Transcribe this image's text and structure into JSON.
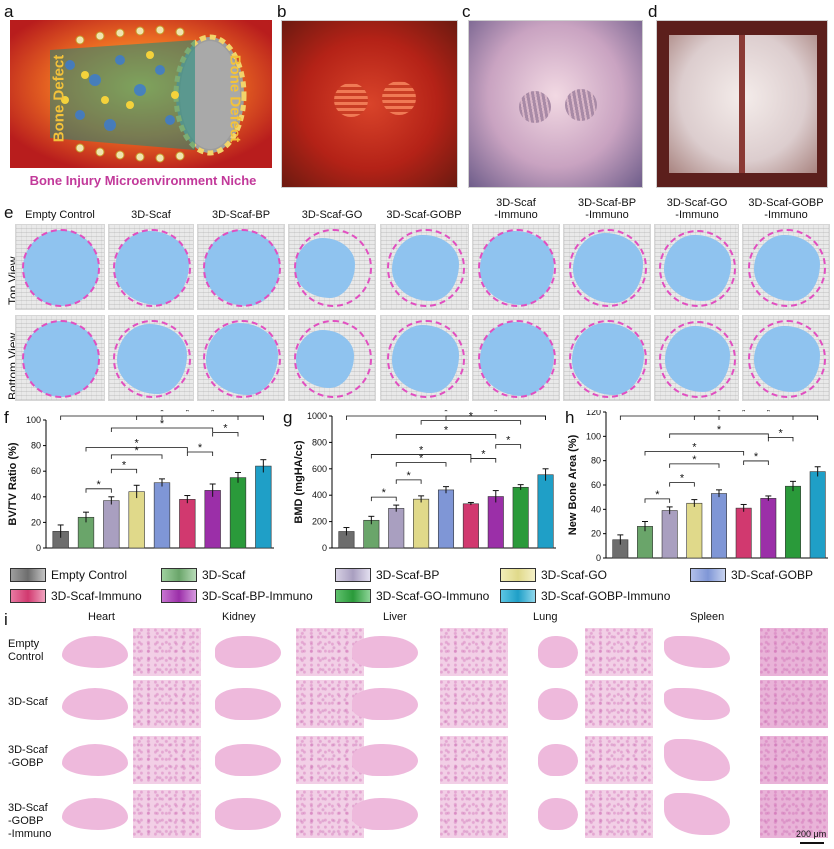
{
  "panels": {
    "a": "a",
    "b": "b",
    "c": "c",
    "d": "d",
    "e": "e",
    "f": "f",
    "g": "g",
    "h": "h",
    "i": "i"
  },
  "panel_a": {
    "left_text": "Bone Defect",
    "right_text": "Bone Defect",
    "caption": "Bone Injury Microenvironment Niche"
  },
  "panel_e": {
    "columns": [
      "Empty Control",
      "3D-Scaf",
      "3D-Scaf-BP",
      "3D-Scaf-GO",
      "3D-Scaf-GOBP",
      "3D-Scaf\n-Immuno",
      "3D-Scaf-BP\n-Immuno",
      "3D-Scaf-GO\n-Immuno",
      "3D-Scaf-GOBP\n-Immuno"
    ],
    "rows": [
      "Top View",
      "Bottom View"
    ]
  },
  "legend": {
    "items": [
      {
        "label": "Empty Control",
        "color": "#6d6d6d"
      },
      {
        "label": "3D-Scaf",
        "color": "#6aa56a"
      },
      {
        "label": "3D-Scaf-BP",
        "color": "#a99fc0"
      },
      {
        "label": "3D-Scaf-GO",
        "color": "#e0d98a"
      },
      {
        "label": "3D-Scaf-GOBP",
        "color": "#7f96d6"
      },
      {
        "label": "3D-Scaf-Immuno",
        "color": "#d1396f"
      },
      {
        "label": "3D-Scaf-BP-Immuno",
        "color": "#9b2fa8"
      },
      {
        "label": "3D-Scaf-GO-Immuno",
        "color": "#2a9a3a"
      },
      {
        "label": "3D-Scaf-GOBP-Immuno",
        "color": "#1f9fc7"
      }
    ]
  },
  "chart_data": [
    {
      "type": "bar",
      "ylabel": "BV/TV Ratio (%)",
      "ylim": [
        0,
        100
      ],
      "yticks": [
        "0",
        "20",
        "40",
        "60",
        "80",
        "100"
      ],
      "values": [
        13,
        24,
        37,
        44,
        51,
        38,
        45,
        55,
        64
      ],
      "errors": [
        5,
        4,
        3,
        5,
        3,
        3,
        5,
        4,
        5
      ],
      "significance": "*"
    },
    {
      "type": "bar",
      "ylabel": "BMD (mgHA/cc)",
      "ylim": [
        0,
        1000
      ],
      "yticks": [
        "0",
        "200",
        "400",
        "600",
        "800",
        "1000"
      ],
      "values": [
        125,
        210,
        300,
        370,
        440,
        335,
        390,
        460,
        555
      ],
      "errors": [
        30,
        30,
        25,
        25,
        25,
        10,
        45,
        20,
        45
      ],
      "significance": "*"
    },
    {
      "type": "bar",
      "ylabel": "New Bone Area (%)",
      "ylim": [
        0,
        120
      ],
      "yticks": [
        "0",
        "20",
        "40",
        "60",
        "80",
        "100",
        "120"
      ],
      "values": [
        15,
        26,
        39,
        45,
        53,
        41,
        49,
        59,
        71
      ],
      "errors": [
        4,
        4,
        3,
        3,
        3,
        3,
        2,
        4,
        4
      ],
      "significance": "*"
    }
  ],
  "panel_i": {
    "organs": [
      "Heart",
      "Kidney",
      "Liver",
      "Lung",
      "Spleen"
    ],
    "groups": [
      "Empty\nControl",
      "3D-Scaf",
      "3D-Scaf\n-GOBP",
      "3D-Scaf\n-GOBP\n-Immuno"
    ],
    "scale_bar": "200 μm"
  }
}
